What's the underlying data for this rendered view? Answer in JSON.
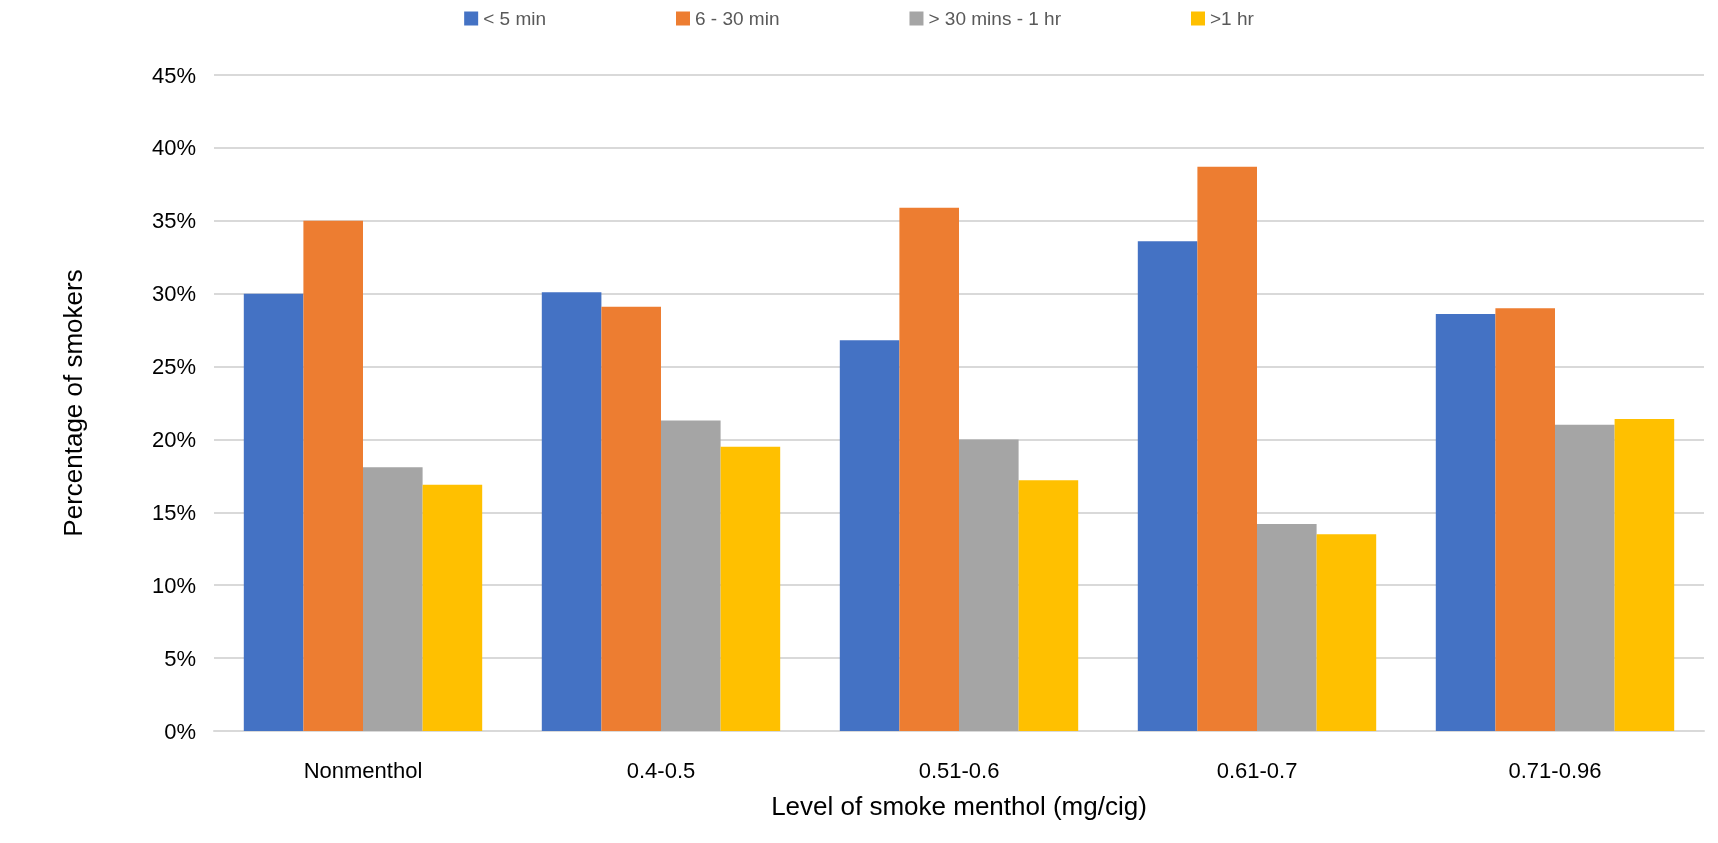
{
  "chart_data": {
    "type": "bar",
    "xlabel": "Level of smoke menthol (mg/cig)",
    "ylabel": "Percentage of smokers",
    "categories": [
      "Nonmenthol",
      "0.4-0.5",
      "0.51-0.6",
      "0.61-0.7",
      "0.71-0.96"
    ],
    "series": [
      {
        "name": "< 5 min",
        "color": "#4472c4",
        "values": [
          30.0,
          30.1,
          26.8,
          33.6,
          28.6
        ]
      },
      {
        "name": "6 - 30 min",
        "color": "#ed7d31",
        "values": [
          35.0,
          29.1,
          35.9,
          38.7,
          29.0
        ]
      },
      {
        "name": "> 30 mins - 1 hr",
        "color": "#a5a5a5",
        "values": [
          18.1,
          21.3,
          20.0,
          14.2,
          21.0
        ]
      },
      {
        "name": ">1 hr",
        "color": "#ffc000",
        "values": [
          16.9,
          19.5,
          17.2,
          13.5,
          21.4
        ]
      }
    ],
    "ylim": [
      0,
      45
    ],
    "yticks": [
      {
        "value": 0,
        "label": "0%"
      },
      {
        "value": 5,
        "label": "5%"
      },
      {
        "value": 10,
        "label": "10%"
      },
      {
        "value": 15,
        "label": "15%"
      },
      {
        "value": 20,
        "label": "20%"
      },
      {
        "value": 25,
        "label": "25%"
      },
      {
        "value": 30,
        "label": "30%"
      },
      {
        "value": 35,
        "label": "35%"
      },
      {
        "value": 40,
        "label": "40%"
      },
      {
        "value": 45,
        "label": "45%"
      }
    ],
    "grid": "y",
    "legend": "top"
  }
}
